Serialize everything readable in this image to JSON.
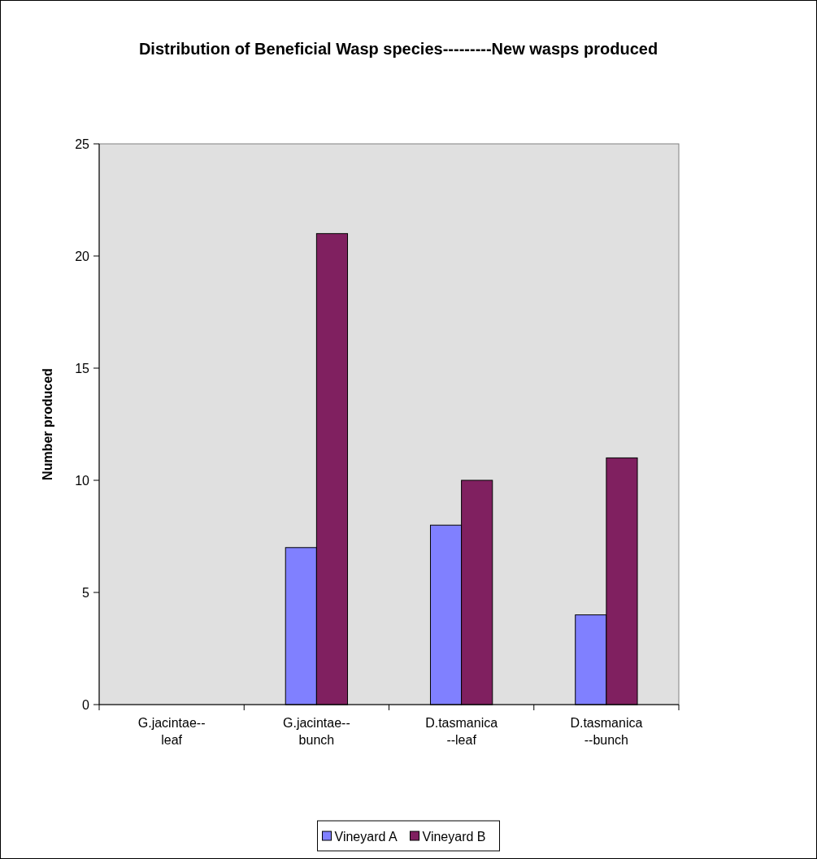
{
  "chart_data": {
    "type": "bar",
    "title": "Distribution of Beneficial Wasp species---------New wasps produced",
    "ylabel": "Number produced",
    "categories": [
      "G.jacintae--leaf",
      "G.jacintae--bunch",
      "D.tasmanica--leaf",
      "D.tasmanica--bunch"
    ],
    "series": [
      {
        "name": "Vineyard A",
        "color": "#8080ff",
        "values": [
          0,
          7,
          8,
          4
        ]
      },
      {
        "name": "Vineyard B",
        "color": "#802060",
        "values": [
          0,
          21,
          10,
          11
        ]
      }
    ],
    "ylim": [
      0,
      25
    ],
    "yticks": [
      0,
      5,
      10,
      15,
      20,
      25
    ],
    "legend": "bottom"
  }
}
